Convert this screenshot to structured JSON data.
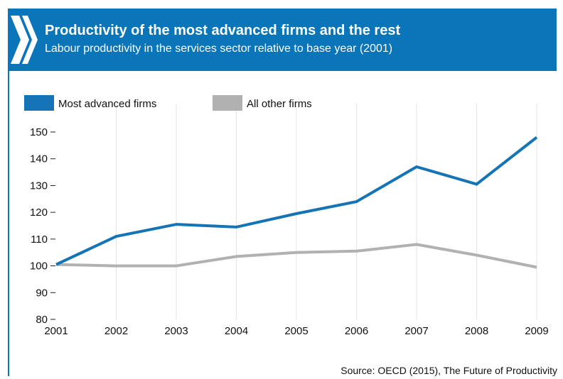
{
  "header": {
    "title": "Productivity of the most advanced firms and the rest",
    "subtitle": "Labour productivity in the services sector relative to base year (2001)"
  },
  "source": "Source: OECD (2015), The Future of Productivity",
  "colors": {
    "header_bg": "#0b75ba",
    "series_advanced": "#1474b6",
    "series_other": "#b1b1b1"
  },
  "logo": {
    "icon": "chevron-logo-icon"
  },
  "chart_data": {
    "type": "line",
    "title": "Productivity of the most advanced firms and the rest",
    "subtitle": "Labour productivity in the services sector relative to base year (2001)",
    "x": [
      "2001",
      "2002",
      "2003",
      "2004",
      "2005",
      "2006",
      "2007",
      "2008",
      "2009"
    ],
    "series": [
      {
        "name": "Most advanced firms",
        "color": "#1474b6",
        "values": [
          100.5,
          111,
          115.5,
          114.5,
          119.5,
          124,
          137,
          130.5,
          148
        ]
      },
      {
        "name": "All other firms",
        "color": "#b1b1b1",
        "values": [
          100.5,
          100,
          100,
          103.5,
          105,
          105.5,
          108,
          104,
          99.5
        ]
      }
    ],
    "ylim": [
      80,
      150
    ],
    "yticks": [
      80,
      90,
      100,
      110,
      120,
      130,
      140,
      150
    ],
    "xlabel": "",
    "ylabel": "",
    "legend_position": "top-left",
    "grid": {
      "vertical": true,
      "horizontal": false
    }
  }
}
